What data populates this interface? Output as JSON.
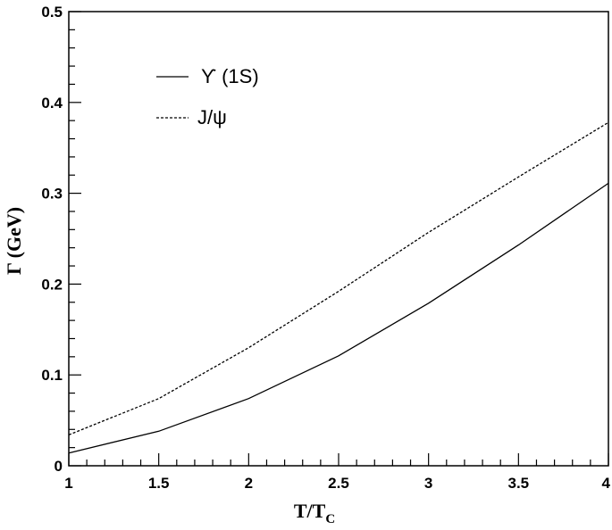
{
  "chart_data": {
    "type": "line",
    "xlabel": {
      "main": "T/T",
      "sub": "C"
    },
    "ylabel": "Γ (GeV)",
    "xlim": [
      1,
      4
    ],
    "ylim": [
      0,
      0.5
    ],
    "x_ticks": [
      "1",
      "1.5",
      "2",
      "2.5",
      "3",
      "3.5",
      "4"
    ],
    "y_ticks": [
      "0",
      "0.1",
      "0.2",
      "0.3",
      "0.4",
      "0.5"
    ],
    "grid": false,
    "legend_position": "top-left",
    "series": [
      {
        "name": "ϒ (1S)",
        "style": "solid",
        "color": "#000000",
        "x": [
          1,
          1.5,
          2,
          2.5,
          3,
          3.5,
          4
        ],
        "y": [
          0.014,
          0.038,
          0.074,
          0.121,
          0.179,
          0.243,
          0.311
        ]
      },
      {
        "name": "J/ψ",
        "style": "dashed",
        "color": "#000000",
        "x": [
          1,
          1.5,
          2,
          2.5,
          3,
          3.5,
          4
        ],
        "y": [
          0.034,
          0.074,
          0.13,
          0.192,
          0.257,
          0.318,
          0.378
        ]
      }
    ]
  }
}
